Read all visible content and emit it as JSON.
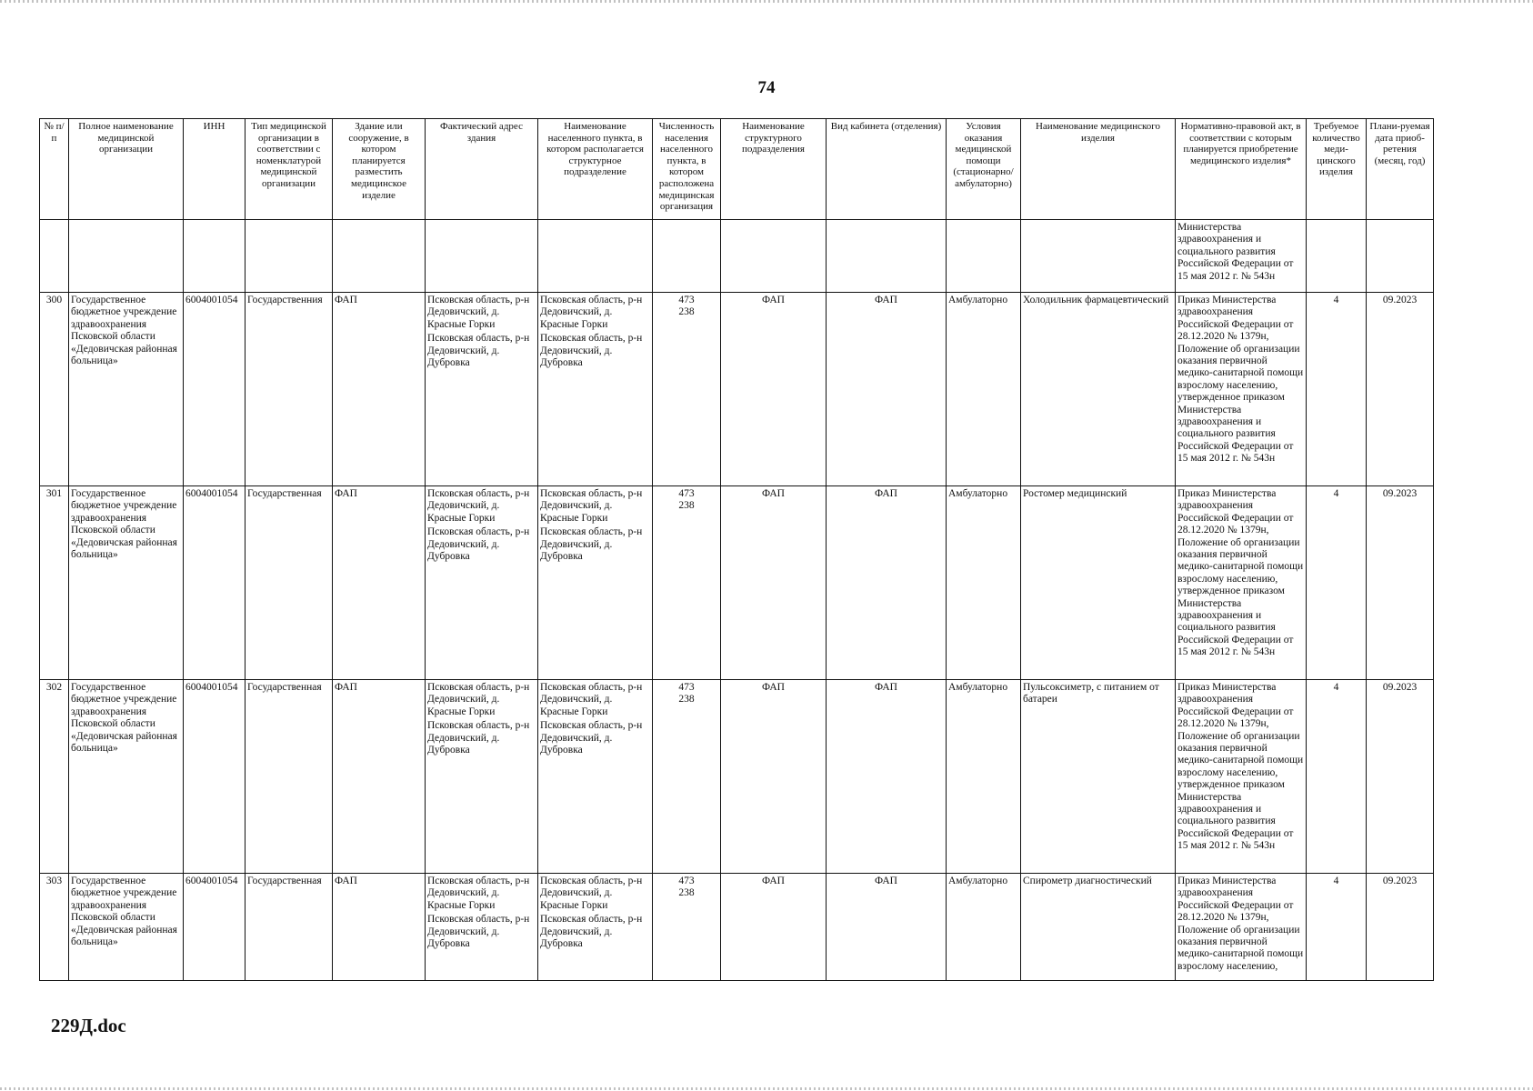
{
  "page_number": "74",
  "footer": "229Д.doc",
  "headers": [
    "№ п/п",
    "Полное наименование медицинской организации",
    "ИНН",
    "Тип медицинской организации в соответствии с номенклатурой медицинской организации",
    "Здание или сооружение, в котором планируется разместить медицинское изделие",
    "Фактический адрес здания",
    "Наименование населенного пункта, в котором располагается структурное подразделение",
    "Численность населения населенного пункта, в котором расположена медицинская организация",
    "Наименование структурного подразделения",
    "Вид кабинета (отделения)",
    "Условия оказания медицинской помощи (стационарно/ амбулаторно)",
    "Наименование медицинского изделия",
    "Нормативно-правовой акт, в соответствии с которым планируется приобретение медицинского изделия*",
    "Требуемое количество меди-цинского изделия",
    "Плани-руемая дата приоб-ретения (месяц, год)"
  ],
  "continuation_act": "Министерства здравоохранения и социального развития Российской Федерации от 15 мая 2012 г. № 543н",
  "rows": [
    {
      "num": "300",
      "org": "Государственное бюджетное учреждение здравоохранения Псковской области «Дедовичская районная больница»",
      "inn": "6004001054",
      "type": "Государственния",
      "building": "ФАП",
      "address": [
        "Псковская область, р-н Дедовичский, д. Красные Горки",
        "Псковская область, р-н Дедовичский, д. Дубровка"
      ],
      "locality": [
        "Псковская область, р-н Дедовичский, д. Красные Горки",
        "Псковская область, р-н Дедовичский, д. Дубровка"
      ],
      "population": [
        "473",
        "238"
      ],
      "unit": "ФАП",
      "cabinet": "ФАП",
      "conditions": "Амбулаторно",
      "device": "Холодильник фармацевтический",
      "act": "Приказ Министерства здравоохранения Российской Федерации от 28.12.2020 № 1379н, Положение об организации оказания первичной медико-санитарной помощи взрослому населению, утвержденное приказом Министерства здравоохранения и социального развития Российской Федерации от 15 мая 2012 г. № 543н",
      "qty": "4",
      "date": "09.2023"
    },
    {
      "num": "301",
      "org": "Государственное бюджетное учреждение здравоохранения Псковской области «Дедовичская районная больница»",
      "inn": "6004001054",
      "type": "Государственная",
      "building": "ФАП",
      "address": [
        "Псковская область, р-н Дедовичский, д. Красные Горки",
        "Псковская область, р-н Дедовичский, д. Дубровка"
      ],
      "locality": [
        "Псковская область, р-н Дедовичский, д. Красные Горки",
        "Псковская область, р-н Дедовичский, д. Дубровка"
      ],
      "population": [
        "473",
        "238"
      ],
      "unit": "ФАП",
      "cabinet": "ФАП",
      "conditions": "Амбулаторно",
      "device": "Ростомер медицинский",
      "act": "Приказ Министерства здравоохранения Российской Федерации от 28.12.2020 № 1379н, Положение об организации оказания первичной медико-санитарной помощи взрослому населению, утвержденное приказом Министерства здравоохранения и социального развития Российской Федерации от 15 мая 2012 г. № 543н",
      "qty": "4",
      "date": "09.2023"
    },
    {
      "num": "302",
      "org": "Государственное бюджетное учреждение здравоохранения Псковской области «Дедовичская районная больница»",
      "inn": "6004001054",
      "type": "Государственная",
      "building": "ФАП",
      "address": [
        "Псковская область, р-н Дедовичский, д. Красные Горки",
        "Псковская область, р-н Дедовичский, д. Дубровка"
      ],
      "locality": [
        "Псковская область, р-н Дедовичский, д. Красные Горки",
        "Псковская область, р-н Дедовичский, д. Дубровка"
      ],
      "population": [
        "473",
        "238"
      ],
      "unit": "ФАП",
      "cabinet": "ФАП",
      "conditions": "Амбулаторно",
      "device": "Пульсоксиметр, с питанием от батареи",
      "act": "Приказ Министерства здравоохранения Российской Федерации от 28.12.2020 № 1379н, Положение об организации оказания первичной медико-санитарной помощи взрослому населению, утвержденное приказом Министерства здравоохранения и социального развития Российской Федерации от 15 мая 2012 г. № 543н",
      "qty": "4",
      "date": "09.2023"
    },
    {
      "num": "303",
      "org": "Государственное бюджетное учреждение здравоохранения Псковской области «Дедовичская районная больница»",
      "inn": "6004001054",
      "type": "Государственная",
      "building": "ФАП",
      "address": [
        "Псковская область, р-н Дедовичский, д. Красные Горки",
        "Псковская область, р-н Дедовичский, д. Дубровка"
      ],
      "locality": [
        "Псковская область, р-н Дедовичский, д. Красные Горки",
        "Псковская область, р-н Дедовичский, д. Дубровка"
      ],
      "population": [
        "473",
        "238"
      ],
      "unit": "ФАП",
      "cabinet": "ФАП",
      "conditions": "Амбулаторно",
      "device": "Спирометр диагностический",
      "act": "Приказ Министерства здравоохранения Российской Федерации от 28.12.2020 № 1379н, Положение об организации оказания первичной медико-санитарной помощи взрослому населению,",
      "qty": "4",
      "date": "09.2023"
    }
  ]
}
